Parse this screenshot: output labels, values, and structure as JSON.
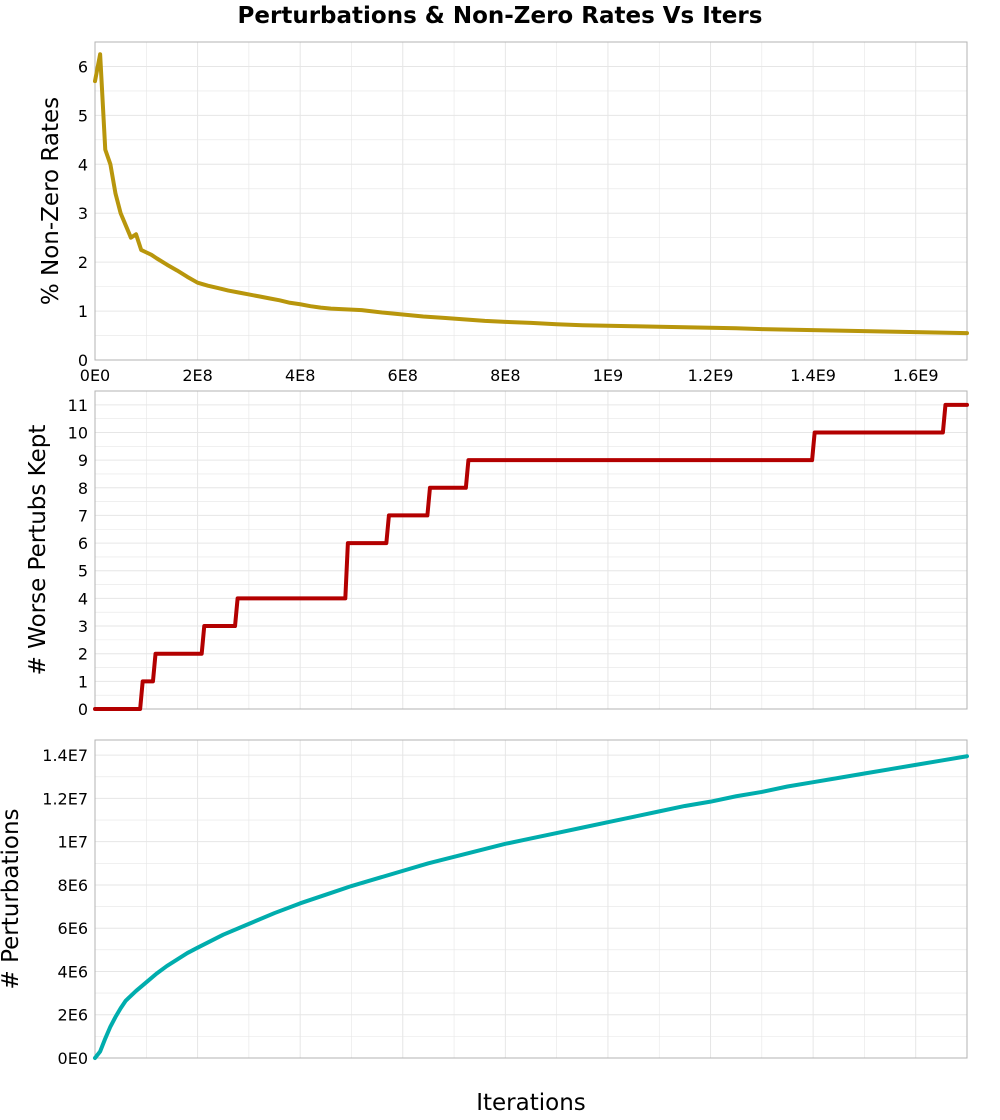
{
  "figure": {
    "title": "Perturbations & Non-Zero Rates Vs Iters",
    "xlabel": "Iterations"
  },
  "colors": {
    "series1": "#B8960C",
    "series2": "#B30000",
    "series3": "#00ADAD",
    "grid": "#e6e6e6",
    "frame": "#b3b3b3",
    "background": "#ffffff"
  },
  "chart_data": [
    {
      "type": "line",
      "ylabel": "% Non-Zero Rates",
      "xlim": [
        0,
        1700000000
      ],
      "ylim": [
        0,
        6.5
      ],
      "grid": true,
      "x_ticks": [
        {
          "value": 0,
          "label": "0E0"
        },
        {
          "value": 200000000,
          "label": "2E8"
        },
        {
          "value": 400000000,
          "label": "4E8"
        },
        {
          "value": 600000000,
          "label": "6E8"
        },
        {
          "value": 800000000,
          "label": "8E8"
        },
        {
          "value": 1000000000,
          "label": "1E9"
        },
        {
          "value": 1200000000,
          "label": "1.2E9"
        },
        {
          "value": 1400000000,
          "label": "1.4E9"
        },
        {
          "value": 1600000000,
          "label": "1.6E9"
        }
      ],
      "y_ticks": [
        {
          "value": 0,
          "label": "0"
        },
        {
          "value": 1,
          "label": "1"
        },
        {
          "value": 2,
          "label": "2"
        },
        {
          "value": 3,
          "label": "3"
        },
        {
          "value": 4,
          "label": "4"
        },
        {
          "value": 5,
          "label": "5"
        },
        {
          "value": 6,
          "label": "6"
        }
      ],
      "series": [
        {
          "x": [
            0,
            10000000,
            20000000,
            30000000,
            40000000,
            50000000,
            60000000,
            70000000,
            80000000,
            90000000,
            100000000,
            110000000,
            120000000,
            140000000,
            160000000,
            180000000,
            200000000,
            220000000,
            240000000,
            260000000,
            280000000,
            300000000,
            320000000,
            340000000,
            360000000,
            380000000,
            400000000,
            420000000,
            440000000,
            460000000,
            480000000,
            500000000,
            520000000,
            560000000,
            600000000,
            640000000,
            680000000,
            720000000,
            760000000,
            800000000,
            850000000,
            900000000,
            950000000,
            1000000000,
            1050000000,
            1100000000,
            1150000000,
            1200000000,
            1250000000,
            1300000000,
            1350000000,
            1400000000,
            1450000000,
            1500000000,
            1550000000,
            1600000000,
            1650000000,
            1700000000
          ],
          "y": [
            5.7,
            6.25,
            4.3,
            4.0,
            3.4,
            3.0,
            2.75,
            2.5,
            2.57,
            2.25,
            2.2,
            2.15,
            2.08,
            1.95,
            1.83,
            1.7,
            1.58,
            1.52,
            1.47,
            1.42,
            1.38,
            1.34,
            1.3,
            1.26,
            1.22,
            1.17,
            1.14,
            1.1,
            1.07,
            1.05,
            1.04,
            1.03,
            1.02,
            0.97,
            0.93,
            0.89,
            0.86,
            0.83,
            0.8,
            0.78,
            0.76,
            0.73,
            0.71,
            0.7,
            0.69,
            0.68,
            0.67,
            0.66,
            0.65,
            0.63,
            0.62,
            0.61,
            0.6,
            0.59,
            0.58,
            0.57,
            0.56,
            0.55
          ]
        }
      ]
    },
    {
      "type": "line",
      "ylabel": "# Worse Pertubs Kept",
      "xlim": [
        0,
        1700000000
      ],
      "ylim": [
        0,
        11.5
      ],
      "grid": true,
      "x_ticks": [
        {
          "value": 0,
          "label": ""
        },
        {
          "value": 200000000,
          "label": ""
        },
        {
          "value": 400000000,
          "label": ""
        },
        {
          "value": 600000000,
          "label": ""
        },
        {
          "value": 800000000,
          "label": ""
        },
        {
          "value": 1000000000,
          "label": ""
        },
        {
          "value": 1200000000,
          "label": ""
        },
        {
          "value": 1400000000,
          "label": ""
        },
        {
          "value": 1600000000,
          "label": ""
        }
      ],
      "y_ticks": [
        {
          "value": 0,
          "label": "0"
        },
        {
          "value": 1,
          "label": "1"
        },
        {
          "value": 2,
          "label": "2"
        },
        {
          "value": 3,
          "label": "3"
        },
        {
          "value": 4,
          "label": "4"
        },
        {
          "value": 5,
          "label": "5"
        },
        {
          "value": 6,
          "label": "6"
        },
        {
          "value": 7,
          "label": "7"
        },
        {
          "value": 8,
          "label": "8"
        },
        {
          "value": 9,
          "label": "9"
        },
        {
          "value": 10,
          "label": "10"
        },
        {
          "value": 11,
          "label": "11"
        }
      ],
      "series": [
        {
          "x": [
            0,
            88000000,
            93000000,
            113000000,
            118000000,
            208000000,
            213000000,
            273000000,
            278000000,
            488000000,
            493000000,
            568000000,
            573000000,
            648000000,
            653000000,
            723000000,
            728000000,
            1398000000,
            1403000000,
            1653000000,
            1658000000,
            1700000000
          ],
          "y": [
            0,
            0,
            1,
            1,
            2,
            2,
            3,
            3,
            4,
            4,
            6,
            6,
            7,
            7,
            8,
            8,
            9,
            9,
            10,
            10,
            11,
            11
          ]
        }
      ]
    },
    {
      "type": "line",
      "ylabel": "# Perturbations",
      "xlim": [
        0,
        1700000000
      ],
      "ylim": [
        0,
        14700000
      ],
      "grid": true,
      "x_ticks": [
        {
          "value": 0,
          "label": ""
        },
        {
          "value": 200000000,
          "label": ""
        },
        {
          "value": 400000000,
          "label": ""
        },
        {
          "value": 600000000,
          "label": ""
        },
        {
          "value": 800000000,
          "label": ""
        },
        {
          "value": 1000000000,
          "label": ""
        },
        {
          "value": 1200000000,
          "label": ""
        },
        {
          "value": 1400000000,
          "label": ""
        },
        {
          "value": 1600000000,
          "label": ""
        }
      ],
      "y_ticks": [
        {
          "value": 0,
          "label": "0E0"
        },
        {
          "value": 2000000,
          "label": "2E6"
        },
        {
          "value": 4000000,
          "label": "4E6"
        },
        {
          "value": 6000000,
          "label": "6E6"
        },
        {
          "value": 8000000,
          "label": "8E6"
        },
        {
          "value": 10000000,
          "label": "1E7"
        },
        {
          "value": 12000000,
          "label": "1.2E7"
        },
        {
          "value": 14000000,
          "label": "1.4E7"
        }
      ],
      "series": [
        {
          "x": [
            0,
            5000000,
            10000000,
            20000000,
            30000000,
            40000000,
            50000000,
            60000000,
            80000000,
            100000000,
            120000000,
            140000000,
            160000000,
            180000000,
            200000000,
            250000000,
            300000000,
            350000000,
            400000000,
            450000000,
            500000000,
            550000000,
            600000000,
            650000000,
            700000000,
            750000000,
            800000000,
            850000000,
            900000000,
            950000000,
            1000000000,
            1050000000,
            1100000000,
            1150000000,
            1200000000,
            1250000000,
            1300000000,
            1350000000,
            1400000000,
            1450000000,
            1500000000,
            1550000000,
            1600000000,
            1650000000,
            1700000000
          ],
          "y": [
            0,
            150000,
            300000,
            900000,
            1450000,
            1900000,
            2300000,
            2650000,
            3100000,
            3500000,
            3900000,
            4250000,
            4550000,
            4850000,
            5100000,
            5700000,
            6200000,
            6700000,
            7150000,
            7550000,
            7950000,
            8300000,
            8650000,
            9000000,
            9300000,
            9600000,
            9900000,
            10150000,
            10400000,
            10650000,
            10900000,
            11150000,
            11400000,
            11650000,
            11850000,
            12100000,
            12300000,
            12550000,
            12750000,
            12950000,
            13150000,
            13350000,
            13550000,
            13750000,
            13950000
          ]
        }
      ]
    }
  ]
}
